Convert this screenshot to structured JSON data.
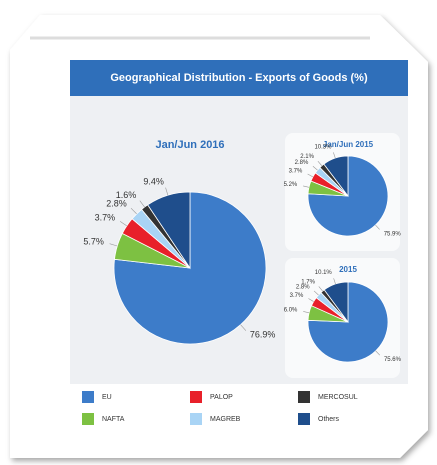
{
  "title": "Geographical Distribution - Exports of Goods (%)",
  "chart_data": [
    {
      "type": "pie",
      "title": "Jan/Jun 2016",
      "categories": [
        "EU",
        "NAFTA",
        "PALOP",
        "MAGREB",
        "MERCOSUL",
        "Others"
      ],
      "values": [
        76.9,
        5.7,
        3.7,
        2.8,
        1.6,
        9.4
      ],
      "value_labels": [
        "76.9%",
        "5.7%",
        "3.7%",
        "2.8%",
        "1.6%",
        "9.4%"
      ],
      "colors": [
        "#3d7cc9",
        "#7dc142",
        "#e8202a",
        "#a9d4f5",
        "#333333",
        "#1f4e8c"
      ]
    },
    {
      "type": "pie",
      "title": "Jan/Jun 2015",
      "categories": [
        "EU",
        "NAFTA",
        "PALOP",
        "MAGREB",
        "MERCOSUL",
        "Others"
      ],
      "values": [
        75.9,
        5.2,
        3.7,
        2.8,
        2.1,
        10.3
      ],
      "value_labels": [
        "75.9%",
        "5.2%",
        "3.7%",
        "2.8%",
        "2.1%",
        "10.3%"
      ],
      "colors": [
        "#3d7cc9",
        "#7dc142",
        "#e8202a",
        "#a9d4f5",
        "#333333",
        "#1f4e8c"
      ]
    },
    {
      "type": "pie",
      "title": "2015",
      "categories": [
        "EU",
        "NAFTA",
        "PALOP",
        "MAGREB",
        "MERCOSUL",
        "Others"
      ],
      "values": [
        75.6,
        6.0,
        3.7,
        2.8,
        1.7,
        10.1
      ],
      "value_labels": [
        "75.6%",
        "6.0%",
        "3.7%",
        "2.8%",
        "1.7%",
        "10.1%"
      ],
      "colors": [
        "#3d7cc9",
        "#7dc142",
        "#e8202a",
        "#a9d4f5",
        "#333333",
        "#1f4e8c"
      ]
    }
  ]
}
